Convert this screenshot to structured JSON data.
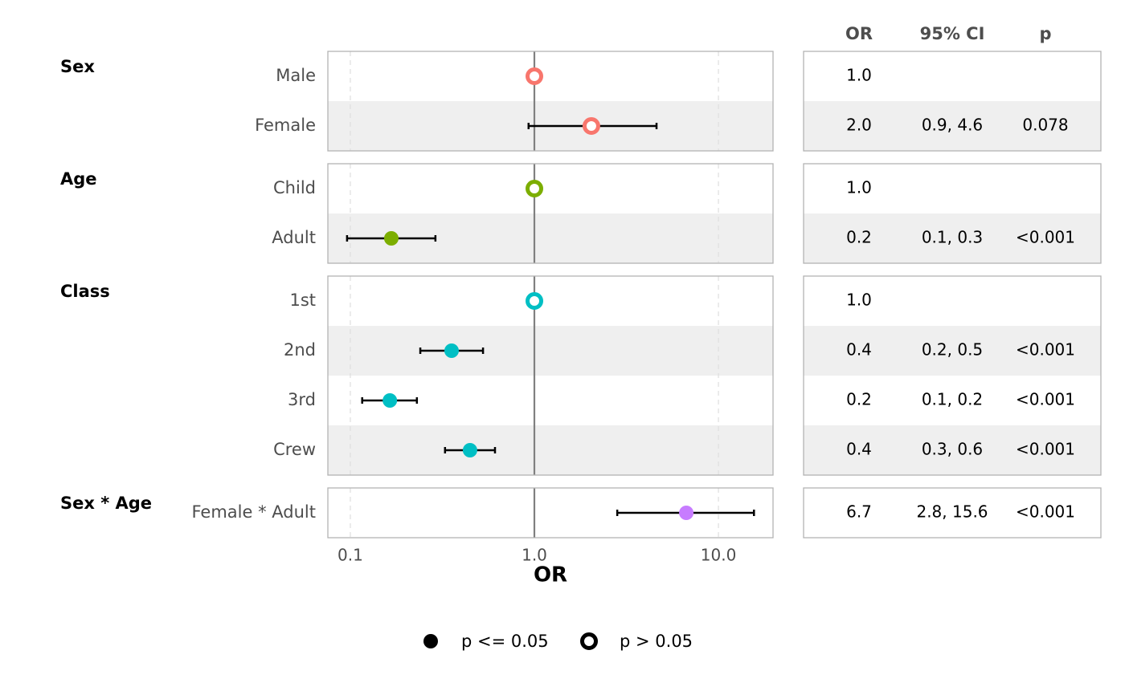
{
  "chart_data": {
    "type": "forest",
    "xlabel": "OR",
    "log_x": true,
    "xlim": [
      0.0755,
      19.8
    ],
    "xticks": [
      0.1,
      {
        "value": 1,
        "label": "1.0"
      },
      {
        "value": 10,
        "label": "10.0"
      }
    ],
    "grid": true,
    "reference": 1,
    "table_headers": [
      "OR",
      "95% CI",
      "p"
    ],
    "legend": [
      {
        "label": "p <= 0.05",
        "marker": "filled"
      },
      {
        "label": "p > 0.05",
        "marker": "hollow"
      }
    ],
    "groups": [
      {
        "name": "Sex",
        "color": "#f8766d",
        "terms": [
          {
            "label": "Male",
            "estimate": 1,
            "estimate_label": "1.0",
            "marker": "hollow"
          },
          {
            "label": "Female",
            "estimate": 2.04,
            "estimate_label": "2.0",
            "ci": [
              0.93,
              4.61
            ],
            "ci_label": "0.9, 4.6",
            "p": "0.078",
            "marker": "hollow"
          }
        ]
      },
      {
        "name": "Age",
        "color": "#7cae00",
        "terms": [
          {
            "label": "Child",
            "estimate": 1,
            "estimate_label": "1.0",
            "marker": "hollow"
          },
          {
            "label": "Adult",
            "estimate": 0.167,
            "estimate_label": "0.2",
            "ci": [
              0.096,
              0.29
            ],
            "ci_label": "0.1, 0.3",
            "p": "<0.001",
            "marker": "filled"
          }
        ]
      },
      {
        "name": "Class",
        "color": "#00bfc4",
        "terms": [
          {
            "label": "1st",
            "estimate": 1,
            "estimate_label": "1.0",
            "marker": "hollow"
          },
          {
            "label": "2nd",
            "estimate": 0.355,
            "estimate_label": "0.4",
            "ci": [
              0.24,
              0.526
            ],
            "ci_label": "0.2, 0.5",
            "p": "<0.001",
            "marker": "filled"
          },
          {
            "label": "3rd",
            "estimate": 0.164,
            "estimate_label": "0.2",
            "ci": [
              0.116,
              0.23
            ],
            "ci_label": "0.1, 0.2",
            "p": "<0.001",
            "marker": "filled"
          },
          {
            "label": "Crew",
            "estimate": 0.447,
            "estimate_label": "0.4",
            "ci": [
              0.327,
              0.611
            ],
            "ci_label": "0.3, 0.6",
            "p": "<0.001",
            "marker": "filled"
          }
        ]
      },
      {
        "name": "Sex * Age",
        "color": "#c77cff",
        "terms": [
          {
            "label": "Female * Adult",
            "estimate": 6.69,
            "estimate_label": "6.7",
            "ci": [
              2.82,
              15.6
            ],
            "ci_label": "2.8, 15.6",
            "p": "<0.001",
            "marker": "filled"
          }
        ]
      }
    ]
  }
}
